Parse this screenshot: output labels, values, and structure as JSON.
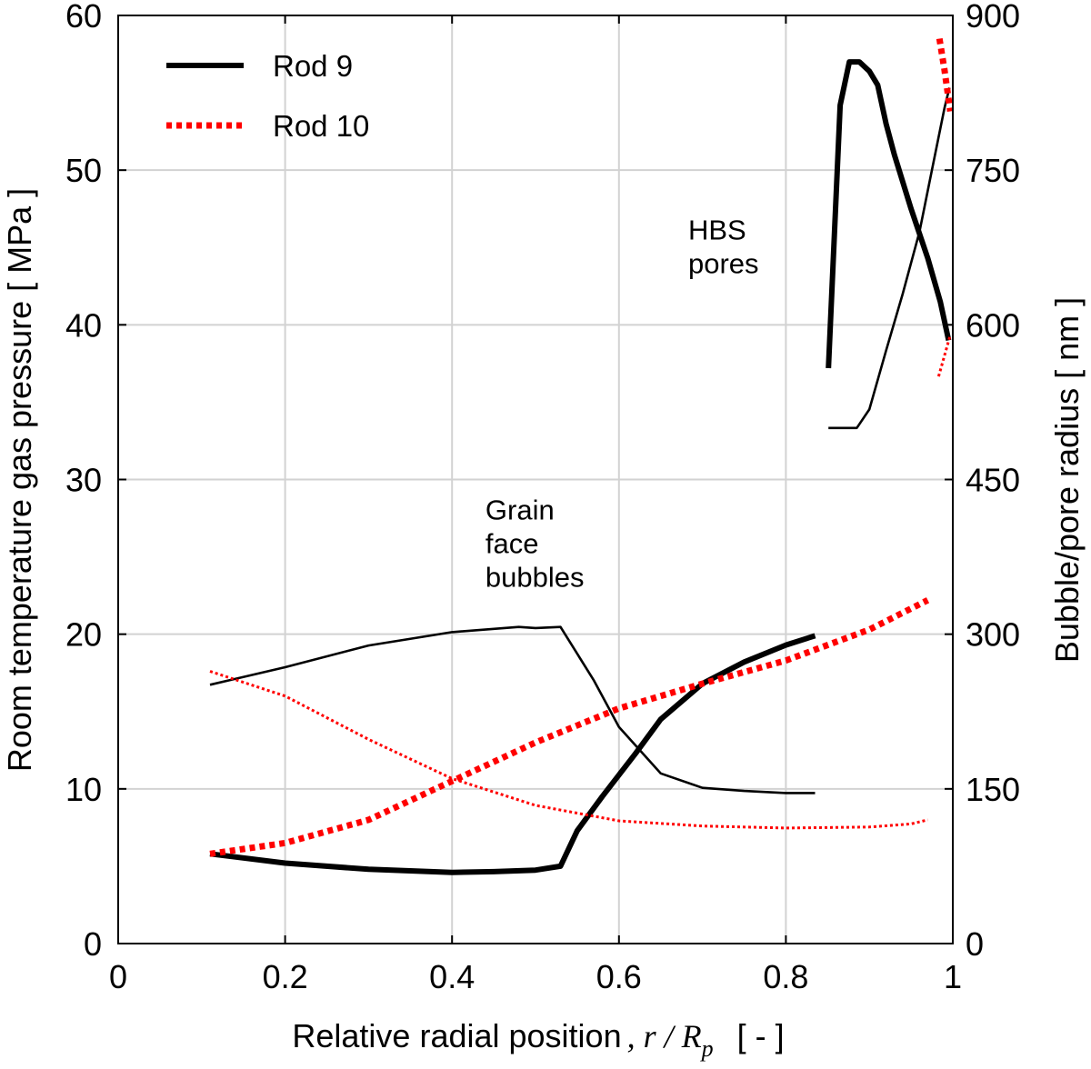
{
  "chart_data": {
    "type": "line",
    "xlabel": "Relative radial position",
    "xlabel_math": ", r / R",
    "xlabel_math_sub": "p",
    "xlabel_unit": "[ - ]",
    "ylabel_left": "Room temperature gas pressure [ MPa ]",
    "ylabel_right": "Bubble/pore radius [ nm ]",
    "xlim": [
      0,
      1
    ],
    "ylim_left": [
      0,
      60
    ],
    "ylim_right": [
      0,
      900
    ],
    "x_ticks": [
      0,
      0.2,
      0.4,
      0.6,
      0.8,
      1
    ],
    "x_tick_labels": [
      "0",
      "0.2",
      "0.4",
      "0.6",
      "0.8",
      "1"
    ],
    "y_ticks_left": [
      0,
      10,
      20,
      30,
      40,
      50,
      60
    ],
    "y_tick_labels_left": [
      "0",
      "10",
      "20",
      "30",
      "40",
      "50",
      "60"
    ],
    "y_ticks_right": [
      0,
      150,
      300,
      450,
      600,
      750,
      900
    ],
    "y_tick_labels_right": [
      "0",
      "150",
      "300",
      "450",
      "600",
      "750",
      "900"
    ],
    "grid": true,
    "legend_position": "top-left",
    "legend": [
      {
        "label": "Rod 9",
        "color": "#000000",
        "style": "solid"
      },
      {
        "label": "Rod 10",
        "color": "#ff0000",
        "style": "dotted"
      }
    ],
    "annotations": [
      {
        "lines": [
          "Grain",
          "face",
          "bubbles"
        ],
        "x": 0.44,
        "y": 27.4
      },
      {
        "lines": [
          "HBS",
          "pores"
        ],
        "x": 0.683,
        "y": 45.5
      }
    ],
    "series": [
      {
        "rod": "Rod 9",
        "quantity": "pressure",
        "axis": "left",
        "group": "grain-face",
        "color": "#000000",
        "style": "solid",
        "weight": "thick",
        "x": [
          0.11,
          0.2,
          0.3,
          0.4,
          0.45,
          0.5,
          0.53,
          0.55,
          0.58,
          0.62,
          0.65,
          0.7,
          0.75,
          0.8,
          0.835
        ],
        "y": [
          5.8,
          5.2,
          4.8,
          4.6,
          4.65,
          4.75,
          5.0,
          7.3,
          9.5,
          12.3,
          14.5,
          16.8,
          18.2,
          19.3,
          19.9
        ]
      },
      {
        "rod": "Rod 9",
        "quantity": "radius",
        "axis": "right",
        "group": "grain-face",
        "color": "#000000",
        "style": "solid",
        "weight": "thin",
        "x": [
          0.11,
          0.2,
          0.3,
          0.4,
          0.48,
          0.5,
          0.53,
          0.57,
          0.6,
          0.65,
          0.7,
          0.75,
          0.8,
          0.835
        ],
        "y": [
          251,
          268,
          289,
          302,
          307,
          306,
          307,
          255,
          210,
          165,
          151,
          148,
          146,
          146
        ]
      },
      {
        "rod": "Rod 10",
        "quantity": "pressure",
        "axis": "left",
        "group": "grain-face",
        "color": "#ff0000",
        "style": "dotted",
        "weight": "thick",
        "x": [
          0.11,
          0.2,
          0.3,
          0.4,
          0.5,
          0.6,
          0.7,
          0.8,
          0.9,
          0.97
        ],
        "y": [
          5.8,
          6.5,
          8.0,
          10.5,
          13.0,
          15.2,
          16.8,
          18.3,
          20.3,
          22.2
        ]
      },
      {
        "rod": "Rod 10",
        "quantity": "radius",
        "axis": "right",
        "group": "grain-face",
        "color": "#ff0000",
        "style": "dotted",
        "weight": "thin",
        "x": [
          0.11,
          0.2,
          0.3,
          0.4,
          0.5,
          0.6,
          0.7,
          0.8,
          0.9,
          0.95,
          0.97
        ],
        "y": [
          264,
          240,
          198,
          160,
          134,
          119,
          114,
          112,
          113,
          116,
          120
        ]
      },
      {
        "rod": "Rod 9",
        "quantity": "pressure",
        "axis": "left",
        "group": "HBS",
        "color": "#000000",
        "style": "solid",
        "weight": "thick",
        "x": [
          0.851,
          0.865,
          0.876,
          0.888,
          0.9,
          0.91,
          0.92,
          0.93,
          0.95,
          0.97,
          0.985,
          0.995
        ],
        "y": [
          37.2,
          54.2,
          57.0,
          57.0,
          56.4,
          55.5,
          53.0,
          51.0,
          47.5,
          44.3,
          41.5,
          39.0
        ]
      },
      {
        "rod": "Rod 9",
        "quantity": "radius",
        "axis": "right",
        "group": "HBS",
        "color": "#000000",
        "style": "solid",
        "weight": "thin",
        "x": [
          0.851,
          0.87,
          0.885,
          0.9,
          0.92,
          0.94,
          0.96,
          0.975,
          0.99,
          0.996
        ],
        "y": [
          500,
          500,
          500,
          518,
          575,
          630,
          690,
          750,
          810,
          830
        ]
      },
      {
        "rod": "Rod 10",
        "quantity": "pressure",
        "axis": "left",
        "group": "HBS",
        "color": "#ff0000",
        "style": "dotted",
        "weight": "thick",
        "x": [
          0.984,
          0.99,
          0.997
        ],
        "y": [
          58.5,
          56.5,
          53.8
        ]
      },
      {
        "rod": "Rod 10",
        "quantity": "radius",
        "axis": "right",
        "group": "HBS",
        "color": "#ff0000",
        "style": "dotted",
        "weight": "thin",
        "x": [
          0.983,
          0.99,
          0.997
        ],
        "y": [
          550,
          570,
          590
        ]
      }
    ]
  }
}
